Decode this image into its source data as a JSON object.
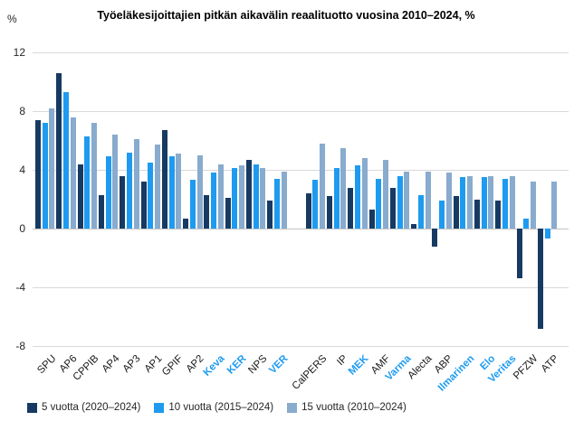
{
  "title": "Työeläkesijoittajien pitkän aikavälin reaalituotto vuosina 2010–2024, %",
  "y_axis_unit_label": "%",
  "colors": {
    "series_5y": "#173A63",
    "series_10y": "#1E9BF0",
    "series_15y": "#88ABCE",
    "highlight_label": "#1E9BF0",
    "gridline": "#d9d9d9",
    "text": "#262626"
  },
  "chart_data": {
    "type": "bar",
    "title": "Työeläkesijoittajien pitkän aikavälin reaalituotto vuosina 2010–2024, %",
    "xlabel": "",
    "ylabel": "%",
    "ylim": [
      -8,
      12
    ],
    "y_ticks": [
      12,
      8,
      4,
      0,
      -4,
      -8
    ],
    "grid": true,
    "legend_position": "bottom",
    "cluster_gap_after_index": 11,
    "categories": [
      "SPU",
      "AP6",
      "CPPIB",
      "AP4",
      "AP3",
      "AP1",
      "GPIF",
      "AP2",
      "Keva",
      "KER",
      "NPS",
      "VER",
      "CalPERS",
      "IP",
      "MEK",
      "AMF",
      "Varma",
      "Alecta",
      "ABP",
      "Ilmarinen",
      "Elo",
      "Veritas",
      "PFZW",
      "ATP"
    ],
    "highlighted_categories": [
      "Keva",
      "KER",
      "VER",
      "MEK",
      "Varma",
      "Ilmarinen",
      "Elo",
      "Veritas"
    ],
    "series": [
      {
        "name": "5 vuotta (2020–2024)",
        "color": "#173A63",
        "values": [
          7.4,
          10.6,
          4.4,
          2.3,
          3.6,
          3.2,
          6.7,
          0.7,
          2.3,
          2.1,
          4.7,
          1.9,
          2.4,
          2.2,
          2.8,
          1.3,
          2.8,
          0.3,
          -1.2,
          2.2,
          2.0,
          1.9,
          -3.4,
          -6.8
        ]
      },
      {
        "name": "10 vuotta (2015–2024)",
        "color": "#1E9BF0",
        "values": [
          7.2,
          9.3,
          6.3,
          4.9,
          5.2,
          4.5,
          4.9,
          3.3,
          3.8,
          4.1,
          4.4,
          3.4,
          3.3,
          4.1,
          4.3,
          3.4,
          3.6,
          2.3,
          1.9,
          3.5,
          3.5,
          3.4,
          0.7,
          -0.7
        ]
      },
      {
        "name": "15 vuotta (2010–2024)",
        "color": "#88ABCE",
        "values": [
          8.2,
          7.6,
          7.2,
          6.4,
          6.1,
          5.7,
          5.1,
          5.0,
          4.4,
          4.3,
          4.1,
          3.9,
          5.8,
          5.5,
          4.8,
          4.7,
          3.9,
          3.9,
          3.8,
          3.6,
          3.6,
          3.6,
          3.2,
          3.2
        ]
      }
    ]
  }
}
